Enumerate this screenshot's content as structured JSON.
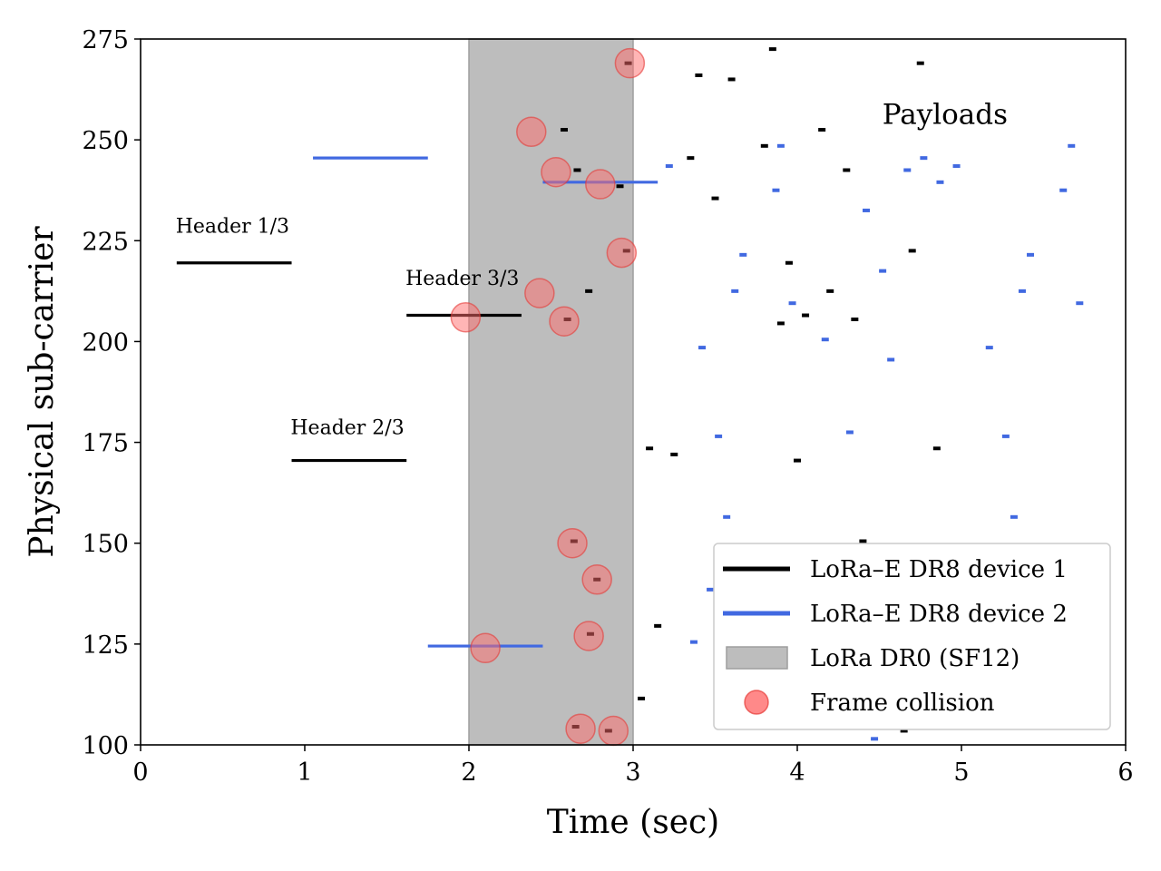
{
  "chart_data": {
    "type": "scatter",
    "xlabel": "Time (sec)",
    "ylabel": "Physical sub-carrier",
    "xlim": [
      0,
      6
    ],
    "ylim": [
      100,
      275
    ],
    "xticks": [
      "0",
      "1",
      "2",
      "3",
      "4",
      "5",
      "6"
    ],
    "yticks": [
      "100",
      "125",
      "150",
      "175",
      "200",
      "225",
      "250",
      "275"
    ],
    "grid": false,
    "legend_position": "lower-right",
    "colors": {
      "device1": "#000000",
      "device2": "#4169e1",
      "shade": "#bdbdbd",
      "collision": "#ff6b6b"
    },
    "legend": [
      {
        "label": "LoRa–E DR8 device 1",
        "kind": "line",
        "color": "#000000"
      },
      {
        "label": "LoRa–E DR8 device 2",
        "kind": "line",
        "color": "#4169e1"
      },
      {
        "label": "LoRa DR0 (SF12)",
        "kind": "patch",
        "color": "#bdbdbd"
      },
      {
        "label": "Frame collision",
        "kind": "circle",
        "color": "#ff6b6b"
      }
    ],
    "annotations": [
      {
        "text": "Header 1/3",
        "x": 0.56,
        "y": 227,
        "size": "small"
      },
      {
        "text": "Header 2/3",
        "x": 1.26,
        "y": 177,
        "size": "small"
      },
      {
        "text": "Header 3/3",
        "x": 1.96,
        "y": 214,
        "size": "small"
      },
      {
        "text": "Payloads",
        "x": 4.9,
        "y": 254,
        "size": "large"
      }
    ],
    "shaded_region": {
      "x": [
        2.0,
        3.0
      ],
      "label": "LoRa DR0 (SF12)"
    },
    "headers": [
      {
        "series": "device1",
        "x": [
          0.22,
          0.92
        ],
        "y": 219.5
      },
      {
        "series": "device1",
        "x": [
          0.92,
          1.62
        ],
        "y": 170.5
      },
      {
        "series": "device1",
        "x": [
          1.62,
          2.32
        ],
        "y": 206.5
      },
      {
        "series": "device2",
        "x": [
          1.05,
          1.75
        ],
        "y": 245.5
      },
      {
        "series": "device2",
        "x": [
          2.45,
          3.15
        ],
        "y": 239.5
      },
      {
        "series": "device2",
        "x": [
          1.75,
          2.45
        ],
        "y": 124.5
      }
    ],
    "device1_payloads": [
      [
        2.58,
        252.5
      ],
      [
        2.66,
        242.5
      ],
      [
        2.92,
        238.5
      ],
      [
        2.73,
        212.5
      ],
      [
        2.6,
        205.5
      ],
      [
        2.96,
        222.5
      ],
      [
        2.97,
        269
      ],
      [
        2.64,
        150.5
      ],
      [
        2.78,
        141
      ],
      [
        2.74,
        127.5
      ],
      [
        2.65,
        104.5
      ],
      [
        2.85,
        103.5
      ],
      [
        3.1,
        173.5
      ],
      [
        3.25,
        172
      ],
      [
        3.4,
        266
      ],
      [
        3.6,
        265
      ],
      [
        3.85,
        272.5
      ],
      [
        4.75,
        269
      ],
      [
        3.8,
        248.5
      ],
      [
        4.15,
        252.5
      ],
      [
        3.35,
        245.5
      ],
      [
        4.3,
        242.5
      ],
      [
        3.5,
        235.5
      ],
      [
        4.7,
        222.5
      ],
      [
        3.95,
        219.5
      ],
      [
        4.2,
        212.5
      ],
      [
        4.05,
        206.5
      ],
      [
        3.9,
        204.5
      ],
      [
        4.35,
        205.5
      ],
      [
        4.0,
        170.5
      ],
      [
        4.85,
        173.5
      ],
      [
        3.15,
        129.5
      ],
      [
        3.05,
        111.5
      ],
      [
        4.4,
        150.5
      ],
      [
        4.65,
        103.5
      ]
    ],
    "device2_payloads": [
      [
        3.9,
        248.5
      ],
      [
        3.22,
        243.5
      ],
      [
        4.67,
        242.5
      ],
      [
        4.77,
        245.5
      ],
      [
        4.97,
        243.5
      ],
      [
        5.67,
        248.5
      ],
      [
        4.87,
        239.5
      ],
      [
        3.87,
        237.5
      ],
      [
        5.62,
        237.5
      ],
      [
        4.42,
        232.5
      ],
      [
        3.67,
        221.5
      ],
      [
        5.42,
        221.5
      ],
      [
        4.52,
        217.5
      ],
      [
        3.62,
        212.5
      ],
      [
        5.37,
        212.5
      ],
      [
        3.97,
        209.5
      ],
      [
        5.72,
        209.5
      ],
      [
        4.17,
        200.5
      ],
      [
        3.42,
        198.5
      ],
      [
        5.17,
        198.5
      ],
      [
        4.57,
        195.5
      ],
      [
        3.52,
        176.5
      ],
      [
        4.32,
        177.5
      ],
      [
        5.27,
        176.5
      ],
      [
        3.57,
        156.5
      ],
      [
        5.32,
        156.5
      ],
      [
        3.47,
        138.5
      ],
      [
        3.37,
        125.5
      ],
      [
        4.47,
        101.5
      ]
    ],
    "collisions": [
      [
        2.38,
        252
      ],
      [
        2.53,
        242
      ],
      [
        2.8,
        239
      ],
      [
        2.43,
        212
      ],
      [
        2.58,
        205
      ],
      [
        2.93,
        222
      ],
      [
        2.98,
        269
      ],
      [
        1.98,
        206
      ],
      [
        2.1,
        124
      ],
      [
        2.63,
        150
      ],
      [
        2.78,
        141
      ],
      [
        2.73,
        127
      ],
      [
        2.68,
        104
      ],
      [
        2.88,
        103.5
      ]
    ]
  }
}
